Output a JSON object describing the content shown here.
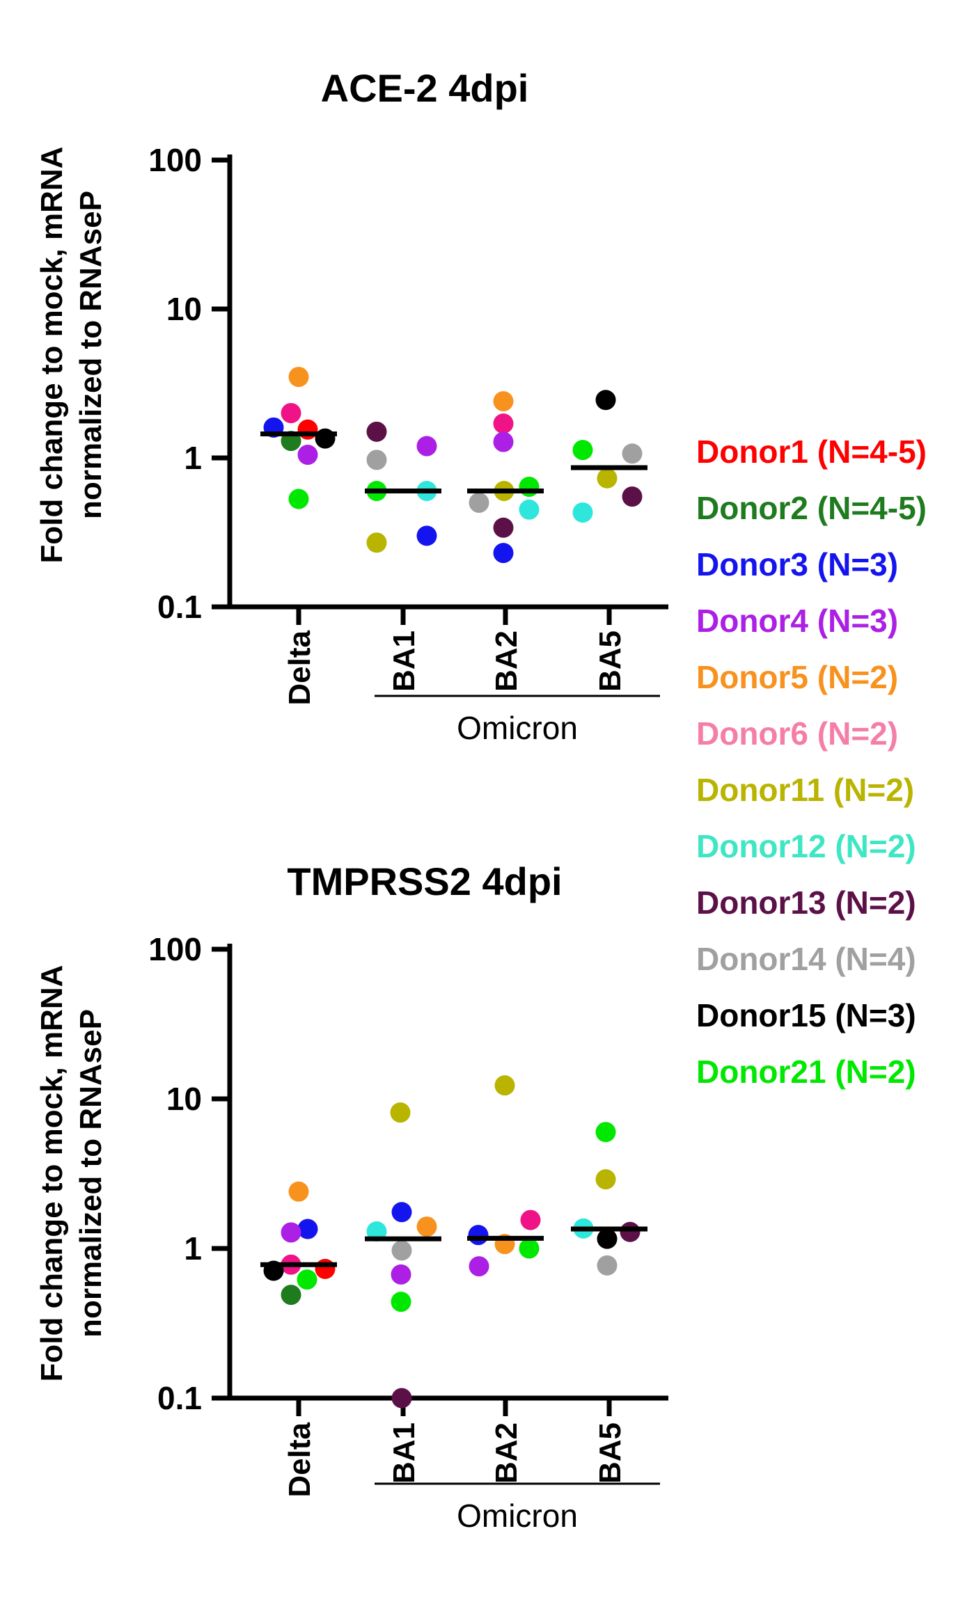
{
  "figure": {
    "background": "#ffffff",
    "axis_color": "#000000"
  },
  "donors": {
    "Donor1": "#FF0000",
    "Donor2": "#1E7B1E",
    "Donor3": "#1414EE",
    "Donor4": "#AC1FE4",
    "Donor5": "#F8921E",
    "Donor6": "#F01388",
    "Donor11": "#B8B400",
    "Donor12": "#2EE6DC",
    "Donor13": "#5C1048",
    "Donor14": "#A0A0A0",
    "Donor15": "#000000",
    "Donor21": "#00E800"
  },
  "legend": {
    "entries": [
      {
        "label": "Donor1 (N=4-5)",
        "donor": "Donor1",
        "color": "#FF0000"
      },
      {
        "label": "Donor2 (N=4-5)",
        "donor": "Donor2",
        "color": "#1E7B1E"
      },
      {
        "label": "Donor3 (N=3)",
        "donor": "Donor3",
        "color": "#1414EE"
      },
      {
        "label": "Donor4 (N=3)",
        "donor": "Donor4",
        "color": "#AC1FE4"
      },
      {
        "label": "Donor5 (N=2)",
        "donor": "Donor5",
        "color": "#F8921E"
      },
      {
        "label": "Donor6 (N=2)",
        "donor": "Donor6",
        "color": "#F57EA8"
      },
      {
        "label": "Donor11 (N=2)",
        "donor": "Donor11",
        "color": "#B8B400"
      },
      {
        "label": "Donor12 (N=2)",
        "donor": "Donor12",
        "color": "#3FE6C3"
      },
      {
        "label": "Donor13 (N=2)",
        "donor": "Donor13",
        "color": "#5C1048"
      },
      {
        "label": "Donor14 (N=4)",
        "donor": "Donor14",
        "color": "#A0A0A0"
      },
      {
        "label": "Donor15 (N=3)",
        "donor": "Donor15",
        "color": "#000000"
      },
      {
        "label": "Donor21 (N=2)",
        "donor": "Donor21",
        "color": "#00E800"
      }
    ]
  },
  "chart_data": [
    {
      "id": "ace2",
      "type": "scatter",
      "title": "ACE-2 4dpi",
      "ylabel_lines": [
        "Fold change to mock, mRNA",
        "normalized to RNAseP"
      ],
      "yscale": "log",
      "ylim": [
        0.1,
        100
      ],
      "yticks": [
        100,
        10,
        1,
        0.1
      ],
      "ytick_labels": [
        "100",
        "10",
        "1",
        "0.1"
      ],
      "categories": [
        "Delta",
        "BA1",
        "BA2",
        "BA5"
      ],
      "group_label": {
        "text": "Omicron",
        "covers": [
          "BA1",
          "BA2",
          "BA5"
        ]
      },
      "groups": [
        {
          "category": "Delta",
          "median": 1.45,
          "points": [
            {
              "donor": "Donor5",
              "value": 3.5,
              "dx": 0
            },
            {
              "donor": "Donor6",
              "value": 2.0,
              "dx": -11
            },
            {
              "donor": "Donor3",
              "value": 1.6,
              "dx": -36
            },
            {
              "donor": "Donor1",
              "value": 1.55,
              "dx": 13
            },
            {
              "donor": "Donor15",
              "value": 1.35,
              "dx": 38
            },
            {
              "donor": "Donor2",
              "value": 1.3,
              "dx": -11
            },
            {
              "donor": "Donor4",
              "value": 1.05,
              "dx": 13
            },
            {
              "donor": "Donor21",
              "value": 0.53,
              "dx": 0
            }
          ]
        },
        {
          "category": "BA1",
          "median": 0.6,
          "points": [
            {
              "donor": "Donor13",
              "value": 1.5,
              "dx": -38
            },
            {
              "donor": "Donor4",
              "value": 1.2,
              "dx": 34
            },
            {
              "donor": "Donor14",
              "value": 0.97,
              "dx": -38
            },
            {
              "donor": "Donor21",
              "value": 0.6,
              "dx": -38
            },
            {
              "donor": "Donor12",
              "value": 0.6,
              "dx": 34
            },
            {
              "donor": "Donor3",
              "value": 0.3,
              "dx": 34
            },
            {
              "donor": "Donor11",
              "value": 0.27,
              "dx": -38
            }
          ]
        },
        {
          "category": "BA2",
          "median": 0.6,
          "points": [
            {
              "donor": "Donor5",
              "value": 2.4,
              "dx": -3
            },
            {
              "donor": "Donor6",
              "value": 1.7,
              "dx": -3
            },
            {
              "donor": "Donor4",
              "value": 1.28,
              "dx": -3
            },
            {
              "donor": "Donor21",
              "value": 0.64,
              "dx": 34
            },
            {
              "donor": "Donor11",
              "value": 0.6,
              "dx": -2
            },
            {
              "donor": "Donor14",
              "value": 0.5,
              "dx": -38
            },
            {
              "donor": "Donor12",
              "value": 0.45,
              "dx": 34
            },
            {
              "donor": "Donor13",
              "value": 0.34,
              "dx": -3
            },
            {
              "donor": "Donor3",
              "value": 0.23,
              "dx": -3
            }
          ]
        },
        {
          "category": "BA5",
          "median": 0.86,
          "points": [
            {
              "donor": "Donor15",
              "value": 2.45,
              "dx": -5
            },
            {
              "donor": "Donor21",
              "value": 1.13,
              "dx": -38
            },
            {
              "donor": "Donor14",
              "value": 1.07,
              "dx": 33
            },
            {
              "donor": "Donor11",
              "value": 0.73,
              "dx": -3
            },
            {
              "donor": "Donor13",
              "value": 0.55,
              "dx": 33
            },
            {
              "donor": "Donor12",
              "value": 0.43,
              "dx": -38
            }
          ]
        }
      ]
    },
    {
      "id": "tmprss2",
      "type": "scatter",
      "title": "TMPRSS2 4dpi",
      "ylabel_lines": [
        "Fold change to mock, mRNA",
        "normalized to RNAseP"
      ],
      "yscale": "log",
      "ylim": [
        0.1,
        100
      ],
      "yticks": [
        100,
        10,
        1,
        0.1
      ],
      "ytick_labels": [
        "100",
        "10",
        "1",
        "0.1"
      ],
      "categories": [
        "Delta",
        "BA1",
        "BA2",
        "BA5"
      ],
      "group_label": {
        "text": "Omicron",
        "covers": [
          "BA1",
          "BA2",
          "BA5"
        ]
      },
      "groups": [
        {
          "category": "Delta",
          "median": 0.78,
          "points": [
            {
              "donor": "Donor5",
              "value": 2.4,
              "dx": 0
            },
            {
              "donor": "Donor3",
              "value": 1.35,
              "dx": 13
            },
            {
              "donor": "Donor4",
              "value": 1.28,
              "dx": -11
            },
            {
              "donor": "Donor6",
              "value": 0.78,
              "dx": -11
            },
            {
              "donor": "Donor1",
              "value": 0.73,
              "dx": 38
            },
            {
              "donor": "Donor15",
              "value": 0.71,
              "dx": -36
            },
            {
              "donor": "Donor21",
              "value": 0.62,
              "dx": 12
            },
            {
              "donor": "Donor2",
              "value": 0.49,
              "dx": -11
            }
          ]
        },
        {
          "category": "BA1",
          "median": 1.16,
          "points": [
            {
              "donor": "Donor11",
              "value": 8.1,
              "dx": -4
            },
            {
              "donor": "Donor3",
              "value": 1.75,
              "dx": -2
            },
            {
              "donor": "Donor5",
              "value": 1.4,
              "dx": 34
            },
            {
              "donor": "Donor12",
              "value": 1.3,
              "dx": -38
            },
            {
              "donor": "Donor14",
              "value": 0.97,
              "dx": -2
            },
            {
              "donor": "Donor4",
              "value": 0.67,
              "dx": -3
            },
            {
              "donor": "Donor21",
              "value": 0.44,
              "dx": -3
            },
            {
              "donor": "Donor13",
              "value": 0.1,
              "dx": -2
            }
          ]
        },
        {
          "category": "BA2",
          "median": 1.17,
          "points": [
            {
              "donor": "Donor11",
              "value": 12.3,
              "dx": -1
            },
            {
              "donor": "Donor6",
              "value": 1.55,
              "dx": 36
            },
            {
              "donor": "Donor3",
              "value": 1.23,
              "dx": -39
            },
            {
              "donor": "Donor5",
              "value": 1.07,
              "dx": -1
            },
            {
              "donor": "Donor21",
              "value": 1.0,
              "dx": 34
            },
            {
              "donor": "Donor4",
              "value": 0.76,
              "dx": -38
            }
          ]
        },
        {
          "category": "BA5",
          "median": 1.35,
          "points": [
            {
              "donor": "Donor21",
              "value": 6.0,
              "dx": -5
            },
            {
              "donor": "Donor11",
              "value": 2.9,
              "dx": -5
            },
            {
              "donor": "Donor12",
              "value": 1.36,
              "dx": -37
            },
            {
              "donor": "Donor13",
              "value": 1.29,
              "dx": 30
            },
            {
              "donor": "Donor15",
              "value": 1.16,
              "dx": -3
            },
            {
              "donor": "Donor14",
              "value": 0.77,
              "dx": -3
            }
          ]
        }
      ]
    }
  ]
}
